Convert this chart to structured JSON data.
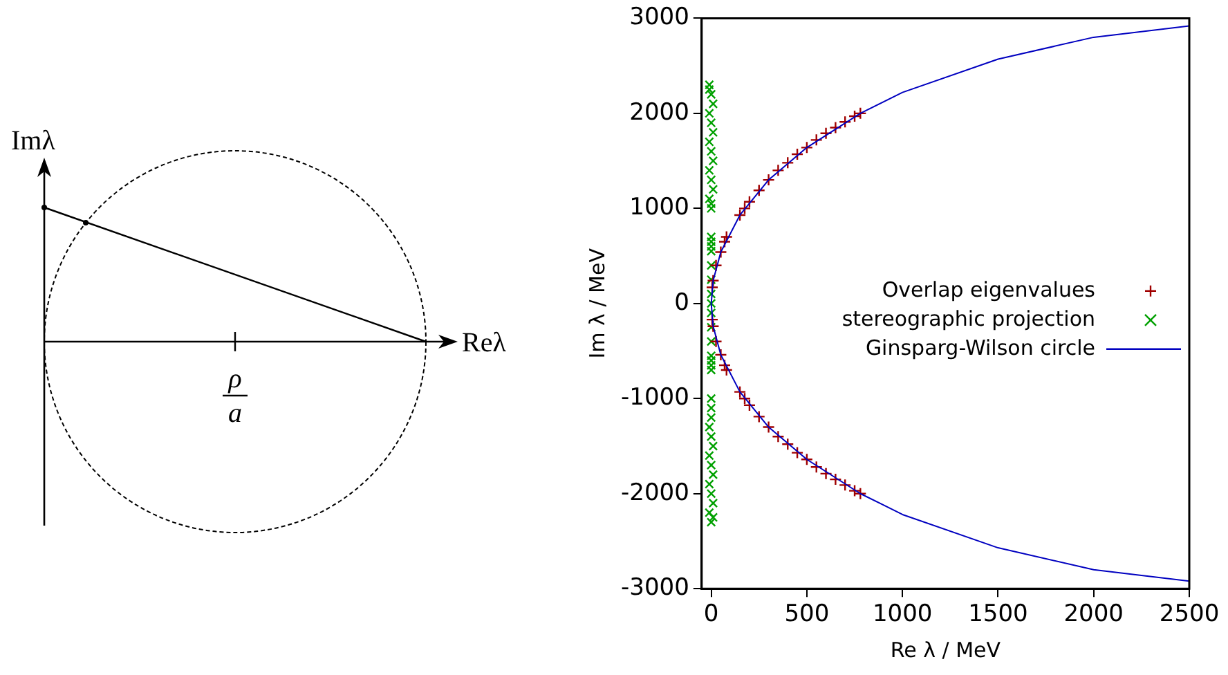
{
  "chart_data": [
    {
      "type": "other",
      "annotations": [
        "Imλ",
        "Reλ",
        "ρ",
        "a"
      ]
    },
    {
      "type": "scatter",
      "xlabel": "Re λ / MeV",
      "ylabel": "Im λ / MeV",
      "xlim": [
        -50,
        2500
      ],
      "xticks": [
        0,
        500,
        1000,
        1500,
        2000,
        2500
      ],
      "ylim": [
        -3000,
        3000
      ],
      "yticks": [
        -3000,
        -2000,
        -1000,
        0,
        1000,
        2000,
        3000
      ],
      "grid": false,
      "legend": "right",
      "series": [
        {
          "name": "Overlap eigenvalues",
          "color": "#a00000",
          "marker": "cross",
          "x": [
            5,
            10,
            25,
            50,
            70,
            80,
            150,
            175,
            200,
            250,
            300,
            350,
            400,
            450,
            500,
            550,
            600,
            650,
            700,
            750,
            780,
            5,
            10,
            25,
            50,
            70,
            80,
            150,
            175,
            200,
            250,
            300,
            350,
            400,
            450,
            500,
            550,
            600,
            650,
            700,
            750,
            780
          ],
          "values": [
            170,
            240,
            400,
            540,
            650,
            700,
            930,
            1000,
            1070,
            1190,
            1300,
            1400,
            1480,
            1570,
            1640,
            1720,
            1790,
            1850,
            1910,
            1970,
            2000,
            -170,
            -240,
            -400,
            -540,
            -650,
            -700,
            -930,
            -1000,
            -1070,
            -1190,
            -1300,
            -1400,
            -1480,
            -1570,
            -1640,
            -1720,
            -1790,
            -1850,
            -1910,
            -1970,
            -2000
          ]
        },
        {
          "name": "stereographic projection",
          "color": "#00a000",
          "marker": "x",
          "x": [
            -10,
            0,
            10,
            -10,
            0,
            10,
            -10,
            0,
            10,
            -10,
            0,
            10,
            -10,
            0,
            0,
            0,
            0,
            0,
            0,
            0,
            0,
            0,
            0,
            0,
            0,
            0,
            0,
            0,
            0,
            0,
            0,
            0,
            -10,
            0,
            10,
            -10,
            0,
            10,
            -10,
            0,
            10,
            -10,
            0,
            10,
            -10,
            0
          ],
          "values": [
            2300,
            2200,
            2100,
            2000,
            1900,
            1800,
            1700,
            1600,
            1500,
            1400,
            1300,
            1200,
            1100,
            1000,
            700,
            650,
            600,
            550,
            400,
            250,
            100,
            0,
            -100,
            -250,
            -400,
            -550,
            -600,
            -650,
            -700,
            -1000,
            -1100,
            -1200,
            -1300,
            -1400,
            -1500,
            -1600,
            -1700,
            -1800,
            -1900,
            -2000,
            -2100,
            -2200,
            -2300,
            -2250,
            2250,
            1050
          ]
        },
        {
          "name": "Ginsparg-Wilson circle",
          "type": "line",
          "color": "#0000c0",
          "marker": "none",
          "x": [
            2500,
            2000,
            1500,
            1000,
            780,
            500,
            300,
            150,
            50,
            10,
            0,
            10,
            50,
            150,
            300,
            500,
            780,
            1000,
            1500,
            2000,
            2500
          ],
          "values": [
            -2920,
            -2800,
            -2570,
            -2220,
            -2000,
            -1640,
            -1300,
            -930,
            -540,
            -240,
            0,
            240,
            540,
            930,
            1300,
            1640,
            2000,
            2220,
            2570,
            2800,
            2920
          ]
        }
      ]
    }
  ]
}
